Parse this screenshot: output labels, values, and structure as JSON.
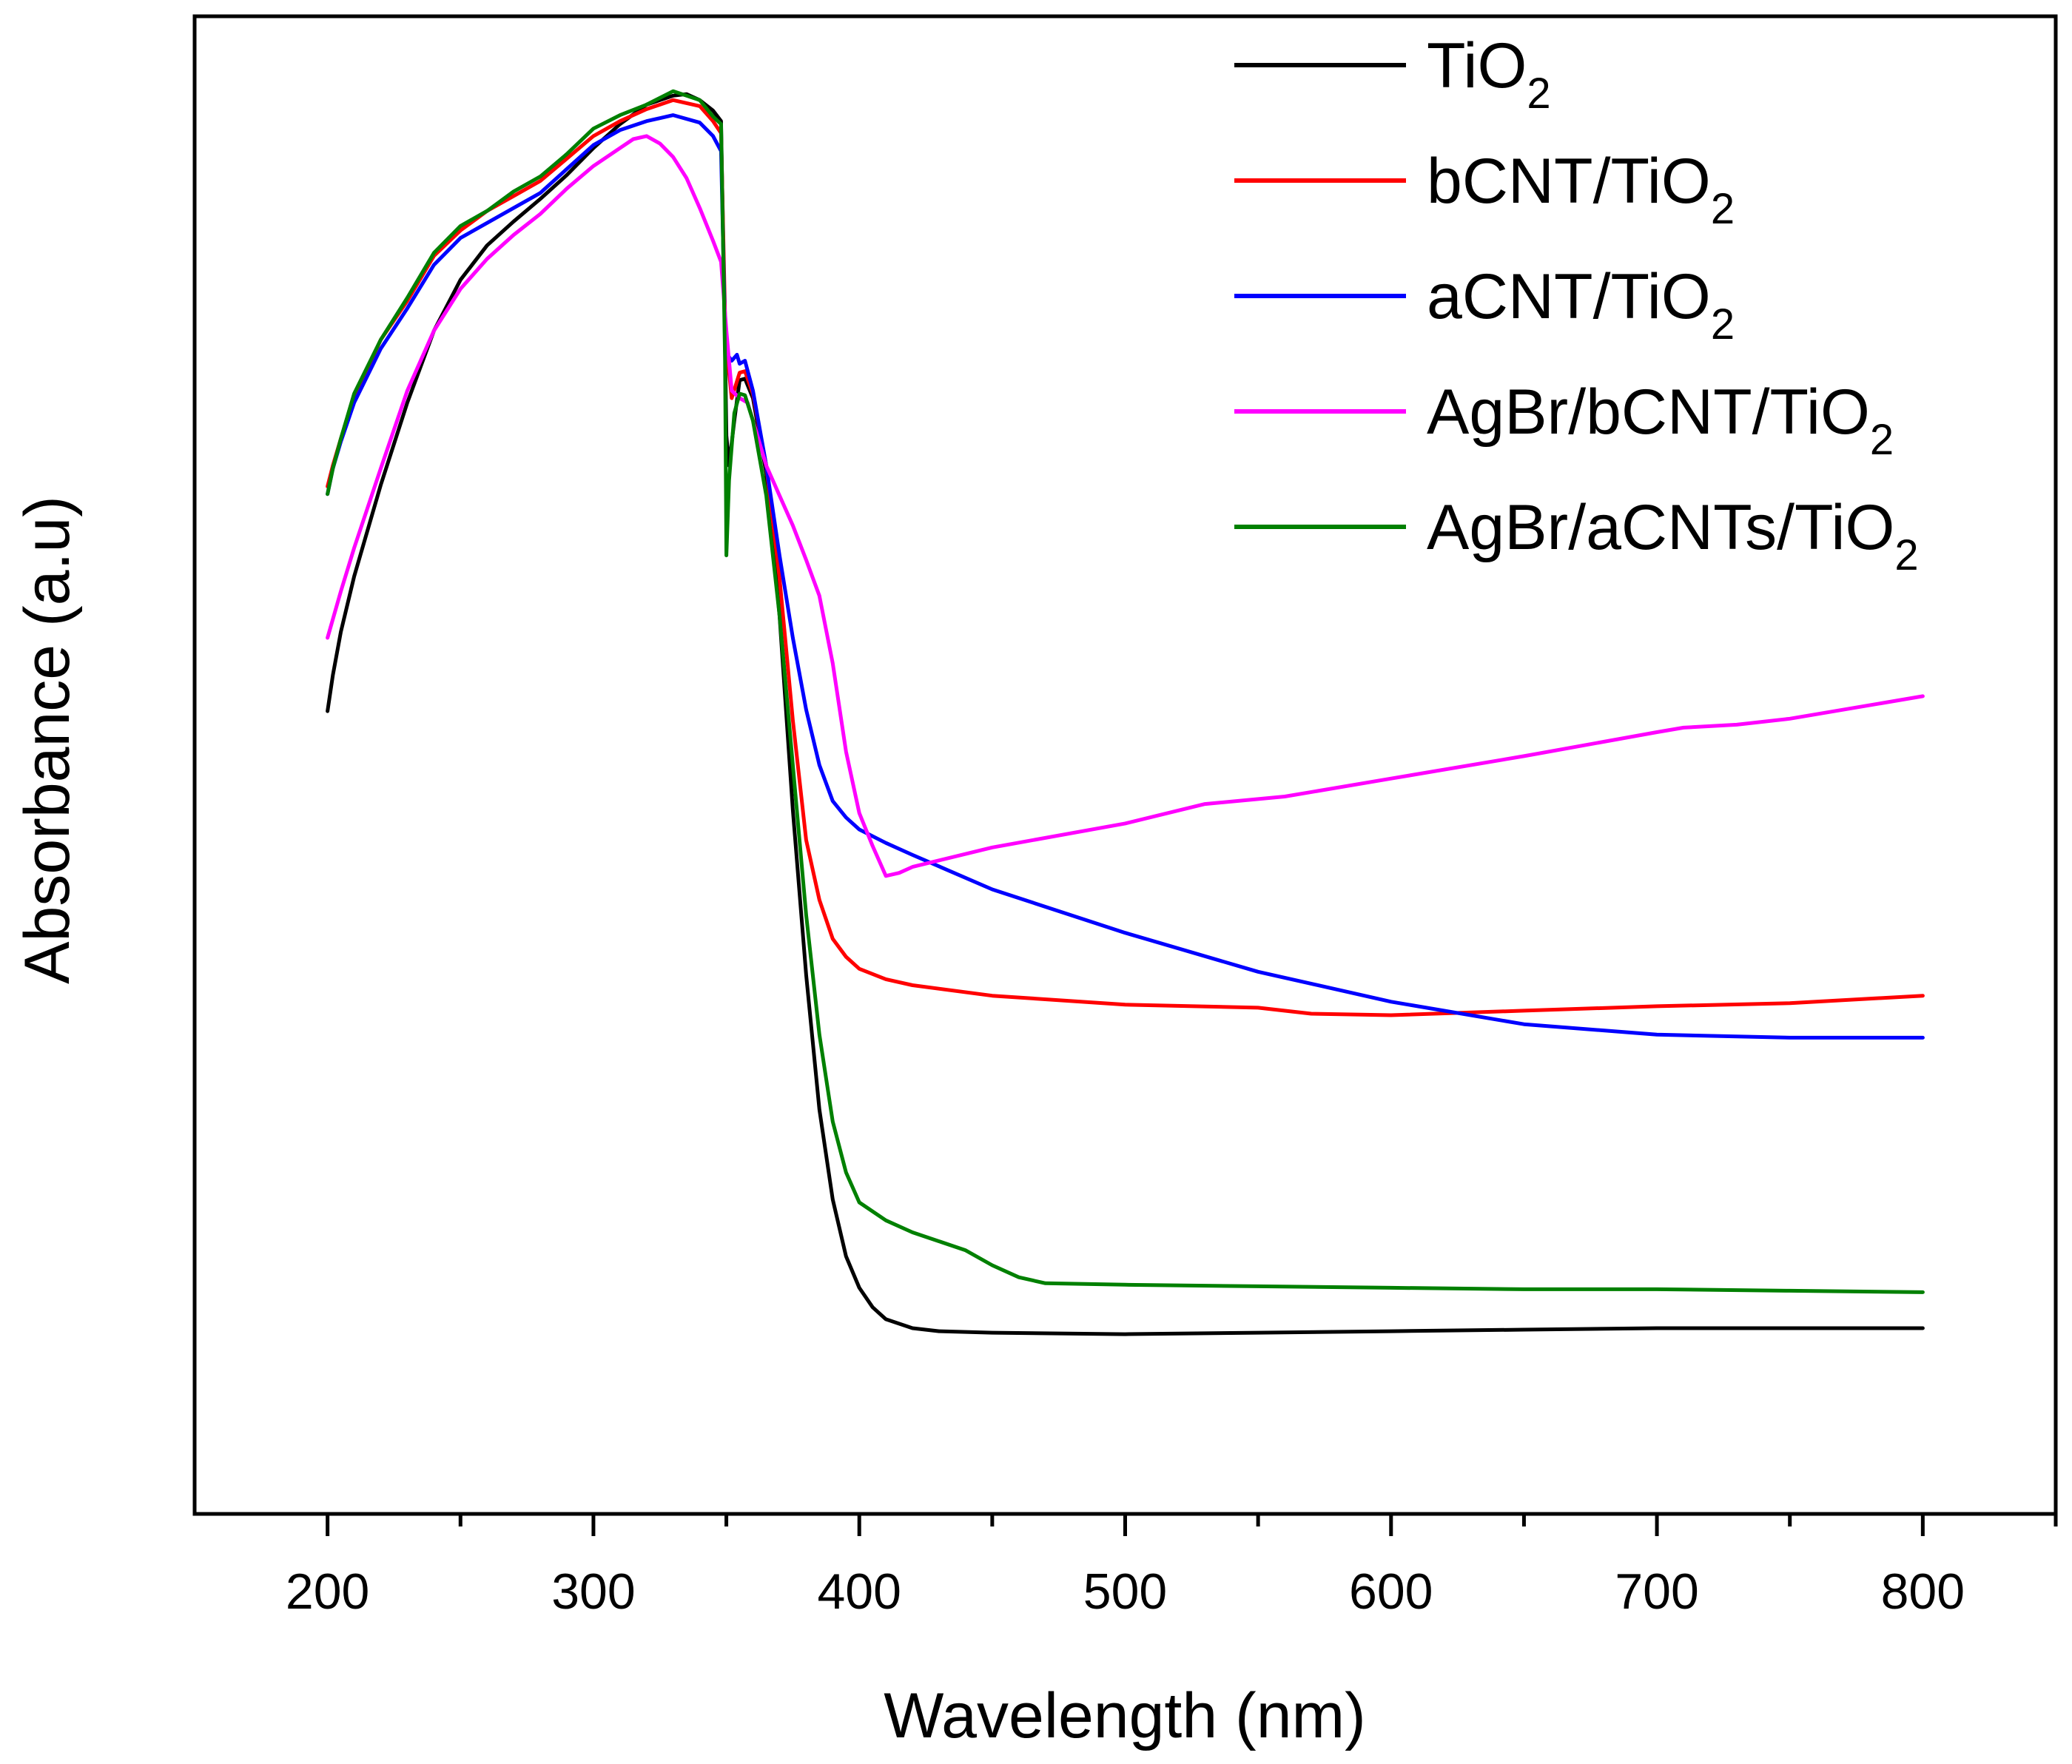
{
  "chart_data": {
    "type": "line",
    "title": "",
    "xlabel": "Wavelength (nm)",
    "ylabel": "Absorbance (a.u)",
    "xlim": [
      150,
      850
    ],
    "ylim": [
      0,
      1
    ],
    "xticks": [
      200,
      300,
      400,
      500,
      600,
      700,
      800
    ],
    "x_minor_ticks": [
      250,
      350,
      450,
      550,
      650,
      750,
      850
    ],
    "y_ticks_shown": false,
    "grid": false,
    "legend_position": "top-right",
    "series": [
      {
        "name": "TiO2",
        "label_main": "TiO",
        "label_sub": "2",
        "color": "#000000",
        "points": [
          [
            200,
            0.536
          ],
          [
            202,
            0.56
          ],
          [
            205,
            0.589
          ],
          [
            210,
            0.626
          ],
          [
            220,
            0.687
          ],
          [
            230,
            0.742
          ],
          [
            240,
            0.79
          ],
          [
            250,
            0.824
          ],
          [
            260,
            0.847
          ],
          [
            270,
            0.863
          ],
          [
            280,
            0.878
          ],
          [
            290,
            0.894
          ],
          [
            300,
            0.912
          ],
          [
            310,
            0.928
          ],
          [
            320,
            0.941
          ],
          [
            330,
            0.947
          ],
          [
            335,
            0.948
          ],
          [
            340,
            0.944
          ],
          [
            345,
            0.937
          ],
          [
            348,
            0.93
          ],
          [
            349.5,
            0.78
          ],
          [
            350,
            0.72
          ],
          [
            351,
            0.7
          ],
          [
            353,
            0.73
          ],
          [
            355,
            0.757
          ],
          [
            357,
            0.758
          ],
          [
            360,
            0.745
          ],
          [
            365,
            0.695
          ],
          [
            370,
            0.6
          ],
          [
            375,
            0.47
          ],
          [
            380,
            0.36
          ],
          [
            385,
            0.27
          ],
          [
            390,
            0.21
          ],
          [
            395,
            0.172
          ],
          [
            400,
            0.151
          ],
          [
            405,
            0.138
          ],
          [
            410,
            0.13
          ],
          [
            420,
            0.124
          ],
          [
            430,
            0.122
          ],
          [
            450,
            0.121
          ],
          [
            500,
            0.12
          ],
          [
            550,
            0.121
          ],
          [
            600,
            0.122
          ],
          [
            650,
            0.123
          ],
          [
            700,
            0.124
          ],
          [
            750,
            0.124
          ],
          [
            800,
            0.124
          ]
        ]
      },
      {
        "name": "bCNT/TiO2",
        "label_main": "bCNT/TiO",
        "label_sub": "2",
        "color": "#ff0000",
        "points": [
          [
            200,
            0.686
          ],
          [
            202,
            0.7
          ],
          [
            205,
            0.718
          ],
          [
            210,
            0.745
          ],
          [
            220,
            0.784
          ],
          [
            230,
            0.81
          ],
          [
            240,
            0.84
          ],
          [
            250,
            0.857
          ],
          [
            260,
            0.87
          ],
          [
            270,
            0.88
          ],
          [
            280,
            0.89
          ],
          [
            290,
            0.905
          ],
          [
            300,
            0.92
          ],
          [
            310,
            0.93
          ],
          [
            320,
            0.938
          ],
          [
            330,
            0.944
          ],
          [
            340,
            0.94
          ],
          [
            345,
            0.93
          ],
          [
            348,
            0.922
          ],
          [
            349.5,
            0.8
          ],
          [
            350,
            0.78
          ],
          [
            352,
            0.745
          ],
          [
            355,
            0.762
          ],
          [
            357,
            0.763
          ],
          [
            360,
            0.748
          ],
          [
            365,
            0.7
          ],
          [
            370,
            0.625
          ],
          [
            375,
            0.53
          ],
          [
            380,
            0.45
          ],
          [
            385,
            0.41
          ],
          [
            390,
            0.384
          ],
          [
            395,
            0.372
          ],
          [
            400,
            0.364
          ],
          [
            410,
            0.357
          ],
          [
            420,
            0.353
          ],
          [
            450,
            0.346
          ],
          [
            500,
            0.34
          ],
          [
            550,
            0.338
          ],
          [
            570,
            0.334
          ],
          [
            600,
            0.333
          ],
          [
            650,
            0.336
          ],
          [
            700,
            0.339
          ],
          [
            750,
            0.341
          ],
          [
            800,
            0.346
          ]
        ]
      },
      {
        "name": "aCNT/TiO2",
        "label_main": "aCNT/TiO",
        "label_sub": "2",
        "color": "#0000ff",
        "points": [
          [
            200,
            0.681
          ],
          [
            202,
            0.698
          ],
          [
            205,
            0.716
          ],
          [
            210,
            0.742
          ],
          [
            220,
            0.778
          ],
          [
            230,
            0.805
          ],
          [
            240,
            0.834
          ],
          [
            250,
            0.852
          ],
          [
            260,
            0.862
          ],
          [
            270,
            0.872
          ],
          [
            280,
            0.882
          ],
          [
            290,
            0.898
          ],
          [
            300,
            0.914
          ],
          [
            310,
            0.924
          ],
          [
            320,
            0.93
          ],
          [
            330,
            0.934
          ],
          [
            340,
            0.929
          ],
          [
            345,
            0.92
          ],
          [
            348,
            0.91
          ],
          [
            349.5,
            0.79
          ],
          [
            350,
            0.775
          ],
          [
            352,
            0.77
          ],
          [
            354,
            0.774
          ],
          [
            355,
            0.768
          ],
          [
            357,
            0.77
          ],
          [
            360,
            0.75
          ],
          [
            365,
            0.7
          ],
          [
            370,
            0.64
          ],
          [
            375,
            0.585
          ],
          [
            380,
            0.537
          ],
          [
            385,
            0.5
          ],
          [
            390,
            0.476
          ],
          [
            395,
            0.465
          ],
          [
            400,
            0.457
          ],
          [
            410,
            0.448
          ],
          [
            420,
            0.44
          ],
          [
            450,
            0.417
          ],
          [
            500,
            0.388
          ],
          [
            550,
            0.362
          ],
          [
            600,
            0.342
          ],
          [
            650,
            0.327
          ],
          [
            700,
            0.32
          ],
          [
            750,
            0.318
          ],
          [
            800,
            0.318
          ]
        ]
      },
      {
        "name": "AgBr/bCNT/TiO2",
        "label_main": "AgBr/bCNT/TiO",
        "label_sub": "2",
        "color": "#ff00ff",
        "points": [
          [
            200,
            0.585
          ],
          [
            205,
            0.616
          ],
          [
            210,
            0.645
          ],
          [
            220,
            0.698
          ],
          [
            230,
            0.75
          ],
          [
            240,
            0.79
          ],
          [
            250,
            0.818
          ],
          [
            260,
            0.838
          ],
          [
            270,
            0.854
          ],
          [
            280,
            0.868
          ],
          [
            290,
            0.885
          ],
          [
            300,
            0.9
          ],
          [
            310,
            0.912
          ],
          [
            315,
            0.918
          ],
          [
            320,
            0.92
          ],
          [
            325,
            0.915
          ],
          [
            330,
            0.906
          ],
          [
            335,
            0.892
          ],
          [
            340,
            0.872
          ],
          [
            345,
            0.85
          ],
          [
            348,
            0.836
          ],
          [
            350,
            0.79
          ],
          [
            352,
            0.75
          ],
          [
            355,
            0.745
          ],
          [
            358,
            0.742
          ],
          [
            360,
            0.73
          ],
          [
            365,
            0.7
          ],
          [
            370,
            0.68
          ],
          [
            375,
            0.66
          ],
          [
            380,
            0.637
          ],
          [
            385,
            0.613
          ],
          [
            390,
            0.568
          ],
          [
            395,
            0.509
          ],
          [
            400,
            0.468
          ],
          [
            405,
            0.446
          ],
          [
            410,
            0.426
          ],
          [
            415,
            0.428
          ],
          [
            420,
            0.432
          ],
          [
            450,
            0.445
          ],
          [
            500,
            0.461
          ],
          [
            530,
            0.474
          ],
          [
            560,
            0.479
          ],
          [
            600,
            0.491
          ],
          [
            650,
            0.506
          ],
          [
            700,
            0.522
          ],
          [
            710,
            0.525
          ],
          [
            730,
            0.527
          ],
          [
            750,
            0.531
          ],
          [
            800,
            0.546
          ]
        ]
      },
      {
        "name": "AgBr/aCNTs/TiO2",
        "label_main": "AgBr/aCNTs/TiO",
        "label_sub": "2",
        "color": "#008000",
        "points": [
          [
            200,
            0.681
          ],
          [
            202,
            0.698
          ],
          [
            205,
            0.718
          ],
          [
            210,
            0.748
          ],
          [
            220,
            0.784
          ],
          [
            230,
            0.812
          ],
          [
            240,
            0.842
          ],
          [
            250,
            0.86
          ],
          [
            260,
            0.87
          ],
          [
            270,
            0.883
          ],
          [
            280,
            0.893
          ],
          [
            290,
            0.908
          ],
          [
            300,
            0.925
          ],
          [
            310,
            0.934
          ],
          [
            320,
            0.941
          ],
          [
            330,
            0.95
          ],
          [
            340,
            0.944
          ],
          [
            345,
            0.933
          ],
          [
            348,
            0.928
          ],
          [
            349.5,
            0.77
          ],
          [
            350,
            0.64
          ],
          [
            351,
            0.69
          ],
          [
            353,
            0.735
          ],
          [
            355,
            0.748
          ],
          [
            357,
            0.747
          ],
          [
            360,
            0.73
          ],
          [
            365,
            0.68
          ],
          [
            370,
            0.6
          ],
          [
            375,
            0.5
          ],
          [
            380,
            0.4
          ],
          [
            385,
            0.32
          ],
          [
            390,
            0.262
          ],
          [
            395,
            0.228
          ],
          [
            400,
            0.208
          ],
          [
            410,
            0.196
          ],
          [
            420,
            0.188
          ],
          [
            430,
            0.182
          ],
          [
            440,
            0.176
          ],
          [
            450,
            0.166
          ],
          [
            460,
            0.158
          ],
          [
            470,
            0.154
          ],
          [
            500,
            0.153
          ],
          [
            550,
            0.152
          ],
          [
            600,
            0.151
          ],
          [
            650,
            0.15
          ],
          [
            700,
            0.15
          ],
          [
            750,
            0.149
          ],
          [
            800,
            0.148
          ]
        ]
      }
    ]
  }
}
